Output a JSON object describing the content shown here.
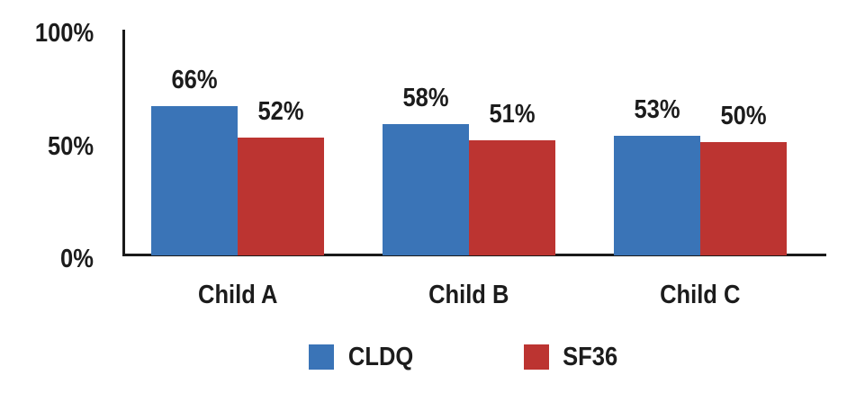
{
  "figure": {
    "background": "#ffffff",
    "text_color": "#1c1c1c",
    "axis_color": "#1a1a1a"
  },
  "chart_data": {
    "type": "bar",
    "title": "",
    "categories": [
      "Child A",
      "Child B",
      "Child C"
    ],
    "series": [
      {
        "name": "CLDQ",
        "color": "#3A74B7",
        "values": [
          66,
          58,
          53
        ]
      },
      {
        "name": "SF36",
        "color": "#BC3431",
        "values": [
          52,
          51,
          50
        ]
      }
    ],
    "value_suffix": "%",
    "data_labels": true,
    "xlabel": "",
    "ylabel": "",
    "ylim": [
      0,
      100
    ],
    "y_ticks": [
      {
        "value": 100,
        "label": "100%"
      },
      {
        "value": 50,
        "label": "50%"
      },
      {
        "value": 0,
        "label": "0%"
      }
    ],
    "grid": false,
    "legend_position": "bottom",
    "legend": [
      "CLDQ",
      "SF36"
    ]
  }
}
